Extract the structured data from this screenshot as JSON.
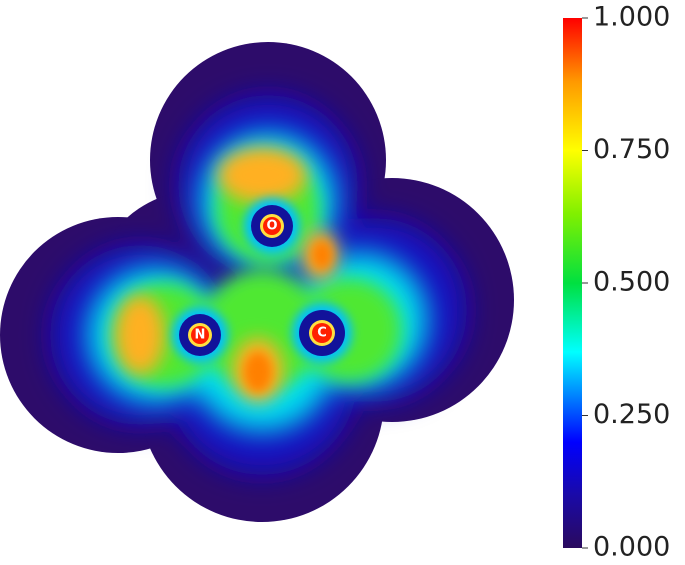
{
  "colorbar": {
    "lim": [
      0,
      1
    ],
    "ticks": [
      {
        "value": 0,
        "label": "0.000"
      },
      {
        "value": 0.25,
        "label": "0.250"
      },
      {
        "value": 0.5,
        "label": "0.500"
      },
      {
        "value": 0.75,
        "label": "0.750"
      },
      {
        "value": 1,
        "label": "1.000"
      }
    ]
  },
  "atoms": [
    {
      "label": "O"
    },
    {
      "label": "N"
    },
    {
      "label": "C"
    }
  ]
}
